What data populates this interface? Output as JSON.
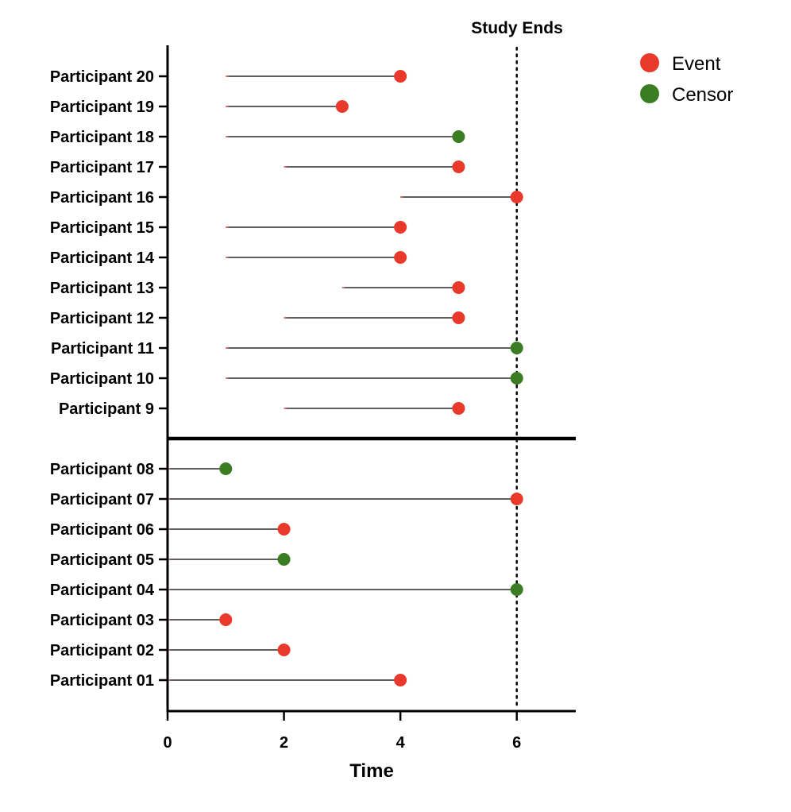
{
  "chart_data": {
    "type": "swimmer",
    "xlabel": "Time",
    "xlim": [
      0,
      7
    ],
    "xticks": [
      0,
      2,
      4,
      6
    ],
    "reference_line": {
      "x": 6,
      "label": "Study Ends",
      "style": "dotted"
    },
    "legend": {
      "placement": "top-right",
      "entries": [
        {
          "name": "Event",
          "color": "#e8392b"
        },
        {
          "name": "Censor",
          "color": "#3b7d23"
        }
      ]
    },
    "groups": [
      {
        "participants": [
          {
            "label": "Participant 20",
            "start": 1,
            "end": 4,
            "outcome": "Event"
          },
          {
            "label": "Participant 19",
            "start": 1,
            "end": 3,
            "outcome": "Event"
          },
          {
            "label": "Participant 18",
            "start": 1,
            "end": 5,
            "outcome": "Censor"
          },
          {
            "label": "Participant 17",
            "start": 2,
            "end": 5,
            "outcome": "Event"
          },
          {
            "label": "Participant 16",
            "start": 4,
            "end": 6,
            "outcome": "Event"
          },
          {
            "label": "Participant 15",
            "start": 1,
            "end": 4,
            "outcome": "Event"
          },
          {
            "label": "Participant 14",
            "start": 1,
            "end": 4,
            "outcome": "Event"
          },
          {
            "label": "Participant 13",
            "start": 3,
            "end": 5,
            "outcome": "Event"
          },
          {
            "label": "Participant 12",
            "start": 2,
            "end": 5,
            "outcome": "Event"
          },
          {
            "label": "Participant 11",
            "start": 1,
            "end": 6,
            "outcome": "Censor"
          },
          {
            "label": "Participant 10",
            "start": 1,
            "end": 6,
            "outcome": "Censor"
          },
          {
            "label": "Participant 9",
            "start": 2,
            "end": 5,
            "outcome": "Event"
          }
        ]
      },
      {
        "participants": [
          {
            "label": "Participant 08",
            "start": 0,
            "end": 1,
            "outcome": "Censor"
          },
          {
            "label": "Participant 07",
            "start": 0,
            "end": 6,
            "outcome": "Event"
          },
          {
            "label": "Participant 06",
            "start": 0,
            "end": 2,
            "outcome": "Event"
          },
          {
            "label": "Participant 05",
            "start": 0,
            "end": 2,
            "outcome": "Censor"
          },
          {
            "label": "Participant 04",
            "start": 0,
            "end": 6,
            "outcome": "Censor"
          },
          {
            "label": "Participant 03",
            "start": 0,
            "end": 1,
            "outcome": "Event"
          },
          {
            "label": "Participant 02",
            "start": 0,
            "end": 2,
            "outcome": "Event"
          },
          {
            "label": "Participant 01",
            "start": 0,
            "end": 4,
            "outcome": "Event"
          }
        ]
      }
    ]
  }
}
